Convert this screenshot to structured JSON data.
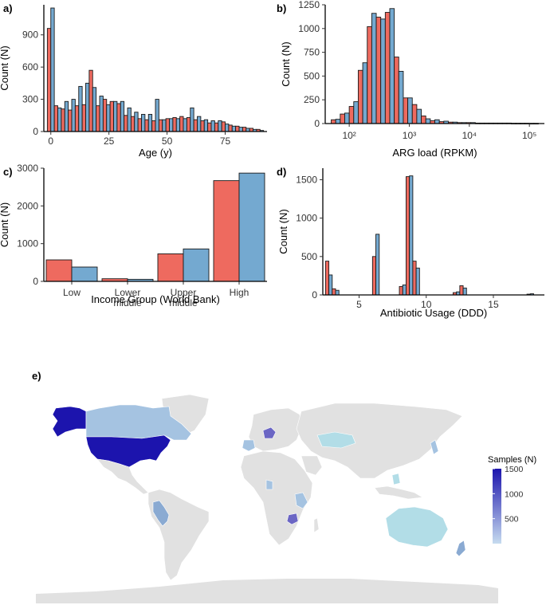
{
  "colors": {
    "series_a": "#ee6a5f",
    "series_b": "#74a9d0",
    "land": "#e1e1e1",
    "ocean": "#ffffff"
  },
  "panels": {
    "a": {
      "tag": "a)"
    },
    "b": {
      "tag": "b)"
    },
    "c": {
      "tag": "c)"
    },
    "d": {
      "tag": "d)"
    },
    "e": {
      "tag": "e)"
    }
  },
  "chart_data": [
    {
      "id": "a",
      "type": "bar",
      "xlabel": "Age (y)",
      "ylabel": "Count (N)",
      "xlim": [
        -3,
        93
      ],
      "ylim": [
        0,
        1180
      ],
      "xticks": [
        0,
        25,
        50,
        75
      ],
      "yticks": [
        0,
        300,
        600,
        900
      ],
      "bin_width": 3,
      "x": [
        0,
        3,
        6,
        9,
        12,
        15,
        18,
        21,
        24,
        27,
        30,
        33,
        36,
        39,
        42,
        45,
        48,
        51,
        54,
        57,
        60,
        63,
        66,
        69,
        72,
        75,
        78,
        81,
        84,
        87,
        90
      ],
      "series": [
        {
          "values": [
            960,
            240,
            210,
            200,
            240,
            250,
            570,
            240,
            300,
            280,
            260,
            150,
            140,
            120,
            110,
            100,
            110,
            120,
            130,
            140,
            130,
            110,
            100,
            80,
            80,
            90,
            60,
            50,
            40,
            30,
            20
          ]
        },
        {
          "values": [
            1150,
            220,
            280,
            300,
            420,
            450,
            410,
            330,
            250,
            280,
            280,
            220,
            180,
            160,
            160,
            300,
            110,
            120,
            120,
            120,
            220,
            140,
            110,
            100,
            100,
            70,
            50,
            40,
            30,
            20,
            10
          ]
        }
      ]
    },
    {
      "id": "b",
      "type": "bar",
      "xscale": "log",
      "xlabel": "ARG load (RPKM)",
      "ylabel": "Count (N)",
      "ylim": [
        0,
        1250
      ],
      "xticks": [
        "10²",
        "10³",
        "10⁴",
        "10⁵"
      ],
      "yticks": [
        0,
        250,
        500,
        750,
        1000,
        1250
      ],
      "bin_edges_log10": [
        1.7,
        1.85,
        2.0,
        2.15,
        2.3,
        2.45,
        2.6,
        2.75,
        2.9,
        3.05,
        3.2,
        3.35,
        3.5,
        3.65,
        3.8,
        3.95,
        4.1,
        4.25,
        4.4,
        4.55,
        4.7,
        4.85,
        5.0,
        5.15
      ],
      "series": [
        {
          "values": [
            40,
            100,
            180,
            560,
            1020,
            1120,
            1170,
            700,
            270,
            200,
            80,
            30,
            20,
            15,
            10,
            10,
            5,
            5,
            5,
            5,
            3,
            3,
            2
          ]
        },
        {
          "values": [
            45,
            110,
            230,
            640,
            1160,
            1100,
            1210,
            550,
            270,
            150,
            50,
            40,
            25,
            15,
            10,
            10,
            5,
            5,
            5,
            5,
            3,
            3,
            2
          ]
        }
      ]
    },
    {
      "id": "c",
      "type": "bar",
      "xlabel": "Income Group (World Bank)",
      "ylabel": "Count (N)",
      "ylim": [
        0,
        3000
      ],
      "yticks": [
        0,
        1000,
        2000,
        3000
      ],
      "categories": [
        "Low",
        "Lower\nmiddle",
        "Upper\nmiddle",
        "High"
      ],
      "series": [
        {
          "values": [
            570,
            70,
            730,
            2670
          ]
        },
        {
          "values": [
            380,
            55,
            860,
            2870
          ]
        }
      ]
    },
    {
      "id": "d",
      "type": "bar",
      "xlabel": "Antibiotic Usage (DDD)",
      "ylabel": "Count (N)",
      "xlim": [
        2.3,
        18.8
      ],
      "ylim": [
        0,
        1650
      ],
      "xticks": [
        5,
        10,
        15
      ],
      "yticks": [
        0,
        500,
        1000,
        1500
      ],
      "bin_width": 0.5,
      "x": [
        2.75,
        3.25,
        3.75,
        4.25,
        4.75,
        5.25,
        5.75,
        6.25,
        6.75,
        7.25,
        7.75,
        8.25,
        8.75,
        9.25,
        9.75,
        10.25,
        10.75,
        11.25,
        11.75,
        12.25,
        12.75,
        13.25,
        13.75,
        14.25,
        14.75,
        15.25,
        15.75,
        16.25,
        16.75,
        17.25,
        17.75,
        18.25
      ],
      "series": [
        {
          "values": [
            440,
            80,
            0,
            0,
            0,
            0,
            0,
            500,
            0,
            0,
            0,
            110,
            1540,
            440,
            0,
            0,
            0,
            0,
            0,
            30,
            120,
            0,
            0,
            0,
            0,
            0,
            0,
            0,
            0,
            0,
            10,
            0
          ]
        },
        {
          "values": [
            260,
            60,
            0,
            0,
            0,
            0,
            0,
            790,
            0,
            0,
            0,
            130,
            1550,
            350,
            0,
            0,
            0,
            0,
            0,
            40,
            90,
            0,
            0,
            0,
            0,
            0,
            0,
            0,
            0,
            0,
            15,
            0
          ]
        }
      ]
    },
    {
      "id": "e",
      "type": "map",
      "legend_title": "Samples (N)",
      "legend_ticks": [
        1500,
        1000,
        500
      ],
      "scale_min": 0,
      "scale_max": 1500,
      "color_low": "#c6dbef",
      "color_high": "#1c14ad",
      "legend_position": "right"
    }
  ]
}
